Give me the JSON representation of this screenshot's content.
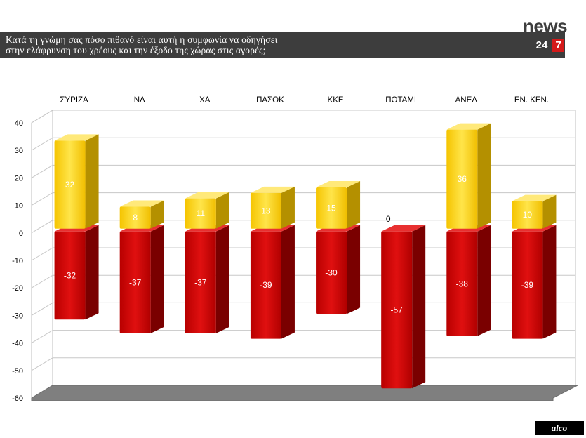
{
  "header": {
    "title": "Κατά τη γνώμη σας πόσο πιθανό είναι αυτή η συμφωνία να οδηγήσει\nστην ελάφρυνση του χρέους και την έξοδο της χώρας στις αγορές;",
    "logo_word": "news",
    "logo_num1": "24",
    "logo_num2": "7"
  },
  "footer": {
    "brand": "alco"
  },
  "colors": {
    "positive": "#ffd21e",
    "negative": "#cc0000",
    "title_bg": "#3d3d3d"
  },
  "chart_data": {
    "type": "bar",
    "stacked": "diverging",
    "categories": [
      "ΣΥΡΙΖΑ",
      "ΝΔ",
      "ΧΑ",
      "ΠΑΣΟΚ",
      "ΚΚΕ",
      "ΠΟΤΑΜΙ",
      "ΑΝΕΛ",
      "ΕΝ. ΚΕΝ."
    ],
    "category_labels_position": "top",
    "series": [
      {
        "values": [
          32,
          8,
          11,
          13,
          15,
          0,
          36,
          10
        ],
        "color": "#ffd21e"
      },
      {
        "values": [
          -32,
          -37,
          -37,
          -39,
          -30,
          -57,
          -38,
          -39
        ],
        "color": "#cc0000"
      }
    ],
    "data_labels": {
      "positive": [
        "32",
        "8",
        "11",
        "13",
        "15",
        "0",
        "36",
        "10"
      ],
      "negative": [
        "-32",
        "-37",
        "-37",
        "-39",
        "-30",
        "-57",
        "-38",
        "-39"
      ]
    },
    "ylim": [
      -60,
      40
    ],
    "yticks": [
      40,
      30,
      20,
      10,
      0,
      -10,
      -20,
      -30,
      -40,
      -50,
      -60
    ],
    "ytick_labels": [
      "40",
      "30",
      "20",
      "10",
      "0",
      "-10",
      "-20",
      "-30",
      "-40",
      "-50",
      "-60"
    ],
    "grid": true,
    "legend": "none",
    "style": "3d"
  }
}
